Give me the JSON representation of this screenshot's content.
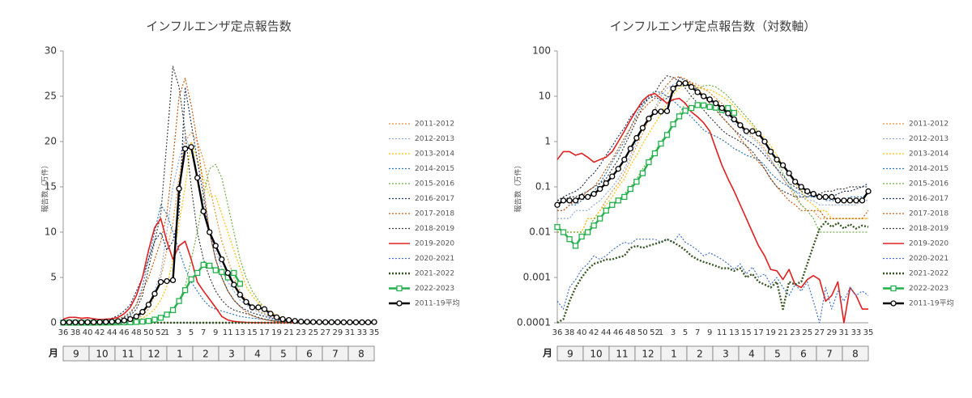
{
  "chart_data": {
    "type": "line",
    "ylabel": "報告数（万件）",
    "month_header": "月",
    "months": [
      "9",
      "10",
      "11",
      "12",
      "1",
      "2",
      "3",
      "4",
      "5",
      "6",
      "7",
      "8"
    ],
    "panels": [
      {
        "title": "インフルエンザ定点報告数",
        "log": false,
        "ylim": [
          0,
          30
        ],
        "yticks": [
          0,
          5,
          10,
          15,
          20,
          25,
          30
        ]
      },
      {
        "title": "インフルエンザ定点報告数（対数軸）",
        "log": true,
        "ylim": [
          0.0001,
          100
        ],
        "yticks": [
          0.0001,
          0.001,
          0.01,
          0.1,
          1,
          10,
          100
        ]
      }
    ],
    "categories": [
      "36",
      null,
      "38",
      null,
      "40",
      null,
      "42",
      null,
      "44",
      null,
      "46",
      null,
      "48",
      null,
      "50",
      null,
      "52",
      "1",
      null,
      "3",
      null,
      "5",
      null,
      "7",
      null,
      "9",
      null,
      "11",
      null,
      "13",
      null,
      "15",
      null,
      "17",
      null,
      "19",
      null,
      "21",
      null,
      "23",
      null,
      "25",
      null,
      "27",
      null,
      "29",
      null,
      "31",
      null,
      "33",
      null,
      "35"
    ],
    "series": [
      {
        "name": "2011-2012",
        "color": "#e69138",
        "dash": "dotted",
        "width": 1.2,
        "values": [
          0.01,
          0.01,
          0.01,
          0.01,
          0.01,
          0.02,
          0.02,
          0.03,
          0.05,
          0.08,
          0.12,
          0.2,
          0.4,
          0.8,
          1.5,
          3,
          5,
          8,
          11,
          16,
          20,
          21,
          20,
          18,
          15,
          12,
          9,
          7,
          5,
          3.5,
          2.5,
          1.8,
          1.3,
          1,
          0.7,
          0.4,
          0.25,
          0.15,
          0.1,
          0.06,
          0.04,
          0.03,
          0.03,
          0.02,
          0.02,
          0.02,
          0.02,
          0.02,
          0.02,
          0.02,
          0.02,
          0.02
        ]
      },
      {
        "name": "2012-2013",
        "color": "#8faadc",
        "dash": "dotted",
        "width": 1.2,
        "values": [
          0.02,
          0.02,
          0.02,
          0.03,
          0.03,
          0.03,
          0.04,
          0.05,
          0.07,
          0.1,
          0.15,
          0.25,
          0.5,
          1,
          2,
          3.5,
          5.5,
          10,
          15,
          18,
          20.5,
          19,
          16,
          13,
          10,
          8,
          6,
          4.5,
          3.5,
          2.5,
          2,
          1.5,
          1.2,
          0.9,
          0.6,
          0.4,
          0.25,
          0.15,
          0.1,
          0.08,
          0.06,
          0.05,
          0.05,
          0.04,
          0.04,
          0.04,
          0.04,
          0.04,
          0.04,
          0.04,
          0.05,
          0.05
        ]
      },
      {
        "name": "2013-2014",
        "color": "#ffc000",
        "dash": "dotted",
        "width": 1.2,
        "values": [
          0.01,
          0.01,
          0.01,
          0.01,
          0.01,
          0.02,
          0.02,
          0.03,
          0.04,
          0.06,
          0.1,
          0.15,
          0.3,
          0.5,
          0.9,
          1.5,
          2.5,
          4,
          7,
          11,
          15,
          20,
          18,
          16,
          14,
          14,
          12,
          10,
          8,
          6,
          4,
          3,
          2.2,
          1.6,
          1.2,
          0.8,
          0.5,
          0.3,
          0.2,
          0.12,
          0.08,
          0.05,
          0.04,
          0.03,
          0.03,
          0.02,
          0.02,
          0.02,
          0.02,
          0.02,
          0.02,
          0.02
        ]
      },
      {
        "name": "2014-2015",
        "color": "#2e75b6",
        "dash": "dotted",
        "width": 1.2,
        "values": [
          0.03,
          0.03,
          0.04,
          0.04,
          0.05,
          0.06,
          0.08,
          0.12,
          0.2,
          0.35,
          0.6,
          1,
          2,
          4,
          7,
          10,
          13,
          12,
          10,
          8,
          6,
          4.5,
          3.5,
          2.5,
          1.8,
          1.5,
          1.3,
          1.1,
          0.9,
          0.7,
          0.6,
          0.5,
          0.45,
          0.4,
          0.3,
          0.2,
          0.15,
          0.12,
          0.1,
          0.08,
          0.07,
          0.06,
          0.06,
          0.06,
          0.05,
          0.05,
          0.05,
          0.05,
          0.06,
          0.06,
          0.06,
          0.07
        ]
      },
      {
        "name": "2015-2016",
        "color": "#70ad47",
        "dash": "dotted",
        "width": 1.2,
        "values": [
          0.01,
          0.01,
          0.01,
          0.01,
          0.01,
          0.01,
          0.02,
          0.02,
          0.03,
          0.04,
          0.05,
          0.07,
          0.1,
          0.15,
          0.25,
          0.4,
          0.6,
          1,
          1.5,
          2.5,
          4,
          7,
          10,
          14,
          17,
          17.5,
          16,
          13,
          10,
          7,
          5,
          3.5,
          2.5,
          1.6,
          1,
          0.6,
          0.35,
          0.2,
          0.12,
          0.07,
          0.04,
          0.03,
          0.02,
          0.01,
          0.01,
          0.01,
          0.01,
          0.01,
          0.01,
          0.01,
          0.01,
          0.01
        ]
      },
      {
        "name": "2016-2017",
        "color": "#203864",
        "dash": "dotted",
        "width": 1.2,
        "values": [
          0.05,
          0.06,
          0.07,
          0.08,
          0.1,
          0.15,
          0.2,
          0.3,
          0.5,
          0.8,
          1.3,
          2,
          3.5,
          5,
          7,
          9,
          10,
          8,
          9,
          12,
          26,
          22,
          18,
          14,
          10,
          7,
          5,
          3.5,
          2.5,
          1.8,
          1.4,
          1.1,
          0.9,
          0.7,
          0.5,
          0.35,
          0.25,
          0.18,
          0.12,
          0.1,
          0.08,
          0.07,
          0.06,
          0.06,
          0.06,
          0.06,
          0.07,
          0.08,
          0.08,
          0.09,
          0.1,
          0.12
        ]
      },
      {
        "name": "2017-2018",
        "color": "#c55a11",
        "dash": "dotted",
        "width": 1.2,
        "values": [
          0.03,
          0.03,
          0.04,
          0.05,
          0.06,
          0.08,
          0.1,
          0.15,
          0.25,
          0.4,
          0.7,
          1.2,
          2,
          3.5,
          5,
          7,
          9,
          12,
          18,
          25,
          27,
          24,
          20,
          15,
          10,
          7,
          5,
          3.5,
          2.5,
          1.8,
          1.2,
          0.8,
          0.5,
          0.35,
          0.25,
          0.15,
          0.1,
          0.07,
          0.05,
          0.04,
          0.03,
          0.03,
          0.03,
          0.03,
          0.02,
          0.02,
          0.02,
          0.02,
          0.02,
          0.02,
          0.02,
          0.03
        ]
      },
      {
        "name": "2018-2019",
        "color": "#404040",
        "dash": "dotted",
        "width": 1.2,
        "values": [
          0.05,
          0.05,
          0.06,
          0.06,
          0.07,
          0.08,
          0.1,
          0.12,
          0.15,
          0.25,
          0.4,
          0.8,
          1.5,
          3,
          6,
          9,
          12,
          20,
          28.3,
          26,
          21,
          15,
          10,
          7,
          5,
          3.5,
          2.5,
          1.8,
          1.4,
          1.2,
          1,
          0.8,
          0.6,
          0.4,
          0.25,
          0.15,
          0.1,
          0.08,
          0.07,
          0.06,
          0.06,
          0.06,
          0.07,
          0.07,
          0.08,
          0.08,
          0.09,
          0.09,
          0.1,
          0.1,
          0.1,
          0.1
        ]
      },
      {
        "name": "2019-2020",
        "color": "#e02020",
        "dash": "solid",
        "width": 1.6,
        "values": [
          0.4,
          0.6,
          0.6,
          0.5,
          0.55,
          0.45,
          0.35,
          0.4,
          0.45,
          0.6,
          1,
          1.7,
          3,
          5,
          8,
          10.5,
          11.5,
          9,
          7,
          8.5,
          9,
          7,
          4.5,
          3.5,
          2.6,
          1.7,
          0.7,
          0.3,
          0.15,
          0.08,
          0.04,
          0.02,
          0.01,
          0.005,
          0.003,
          0.0015,
          0.0014,
          0.0009,
          0.0015,
          0.0007,
          0.0006,
          0.0009,
          0.0011,
          0.0009,
          0.0003,
          0.0004,
          0.0008,
          0.0001,
          0.0006,
          0.0004,
          0.0002,
          0.0002
        ]
      },
      {
        "name": "2020-2021",
        "color": "#4472c4",
        "dash": "dotted",
        "width": 1.2,
        "values": [
          0.0003,
          0.0002,
          0.0006,
          0.0009,
          0.0015,
          0.002,
          0.003,
          0.0025,
          0.003,
          0.004,
          0.005,
          0.006,
          0.0055,
          0.007,
          0.007,
          0.007,
          0.007,
          0.006,
          0.007,
          0.006,
          0.009,
          0.006,
          0.005,
          0.004,
          0.003,
          0.0035,
          0.003,
          0.0025,
          0.002,
          0.0015,
          0.002,
          0.0012,
          0.0017,
          0.001,
          0.0012,
          0.0007,
          0.001,
          0.0006,
          0.0004,
          0.0007,
          0.0005,
          0.0008,
          0.0003,
          0.0001,
          0.0006,
          0.0002,
          0.0005,
          0.0003,
          0.0006,
          0.0004,
          0.0005,
          0.0004
        ]
      },
      {
        "name": "2021-2022",
        "color": "#375623",
        "dash": "dotted",
        "width": 2.4,
        "values": [
          0.0001,
          0.00012,
          0.0003,
          0.0006,
          0.001,
          0.0015,
          0.002,
          0.0022,
          0.0025,
          0.0025,
          0.0028,
          0.003,
          0.0045,
          0.005,
          0.0045,
          0.005,
          0.0055,
          0.006,
          0.007,
          0.006,
          0.005,
          0.004,
          0.003,
          0.0025,
          0.0022,
          0.002,
          0.0018,
          0.0016,
          0.0016,
          0.0014,
          0.0016,
          0.001,
          0.0012,
          0.0008,
          0.0007,
          0.0006,
          0.0008,
          0.0002,
          0.0008,
          0.0007,
          0.0008,
          0.002,
          0.005,
          0.012,
          0.017,
          0.013,
          0.016,
          0.012,
          0.015,
          0.012,
          0.014,
          0.013
        ]
      },
      {
        "name": "2022-2023",
        "color": "#22b14c",
        "dash": "solid",
        "width": 2.4,
        "marker": "square",
        "values": [
          0.013,
          0.01,
          0.007,
          0.005,
          0.008,
          0.01,
          0.014,
          0.02,
          0.03,
          0.04,
          0.05,
          0.06,
          0.09,
          0.13,
          0.2,
          0.35,
          0.55,
          0.9,
          1.4,
          2.4,
          3.6,
          4.8,
          5.5,
          6.4,
          6.3,
          5.8,
          5.6,
          5.0,
          5.5,
          4.3,
          null,
          null,
          null,
          null,
          null,
          null,
          null,
          null,
          null,
          null,
          null,
          null,
          null,
          null,
          null,
          null,
          null,
          null,
          null,
          null,
          null,
          null
        ]
      },
      {
        "name": "2011-19平均",
        "color": "#000000",
        "dash": "solid",
        "width": 2.4,
        "marker": "circle",
        "values": [
          0.04,
          0.05,
          0.05,
          0.05,
          0.06,
          0.06,
          0.07,
          0.09,
          0.12,
          0.17,
          0.25,
          0.4,
          0.7,
          1.2,
          2.0,
          3.2,
          4.5,
          4.6,
          4.7,
          14.8,
          19.2,
          19.4,
          16,
          12.3,
          10,
          8.5,
          7,
          5.5,
          4.2,
          3.1,
          2.3,
          1.7,
          1.7,
          1.5,
          1.0,
          0.6,
          0.4,
          0.3,
          0.2,
          0.13,
          0.1,
          0.08,
          0.07,
          0.06,
          0.06,
          0.06,
          0.05,
          0.05,
          0.05,
          0.05,
          0.05,
          0.08
        ]
      }
    ]
  }
}
